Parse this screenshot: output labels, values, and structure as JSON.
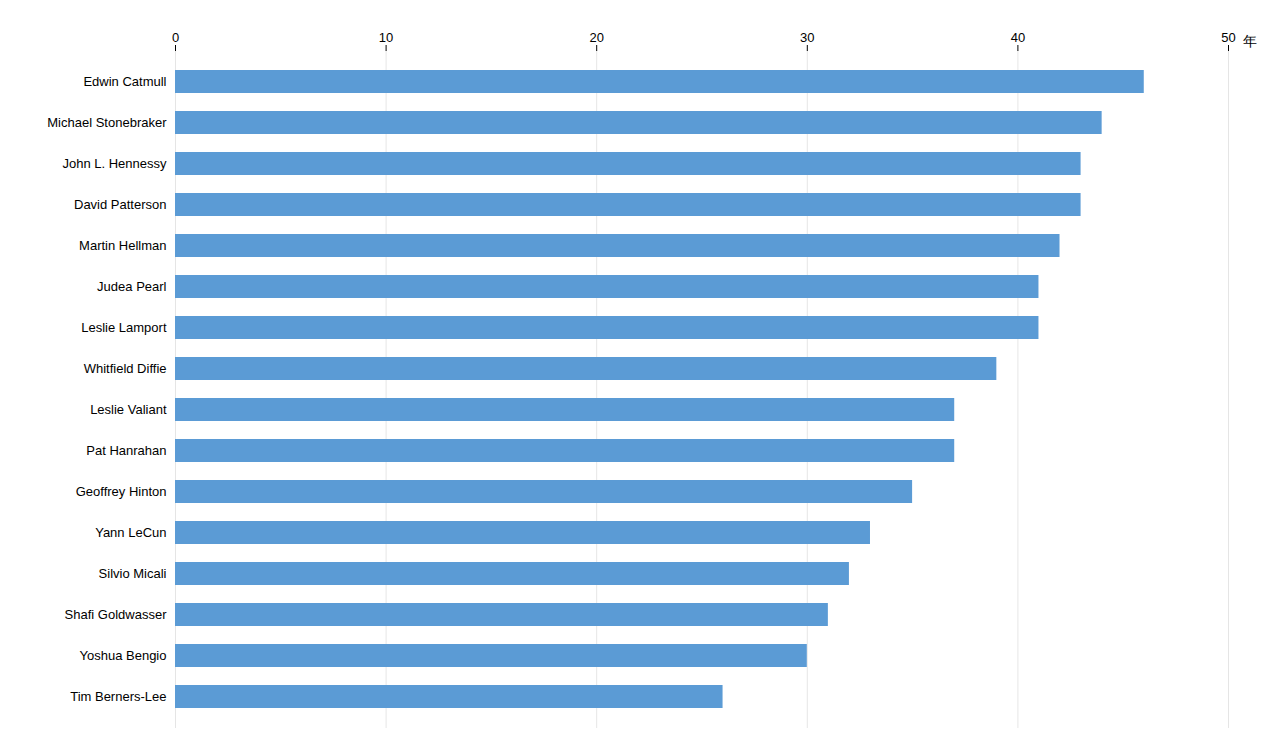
{
  "chart_data": {
    "type": "bar",
    "orientation": "horizontal",
    "xlabel": "年",
    "categories": [
      "Edwin Catmull",
      "Michael Stonebraker",
      "John L. Hennessy",
      "David Patterson",
      "Martin Hellman",
      "Judea Pearl",
      "Leslie Lamport",
      "Whitfield Diffie",
      "Leslie Valiant",
      "Pat Hanrahan",
      "Geoffrey Hinton",
      "Yann LeCun",
      "Silvio Micali",
      "Shafi Goldwasser",
      "Yoshua Bengio",
      "Tim Berners-Lee"
    ],
    "values": [
      46,
      44,
      43,
      43,
      42,
      41,
      41,
      39,
      37,
      37,
      35,
      33,
      32,
      31,
      30,
      26
    ],
    "color": "#5B9BD5",
    "xlim": [
      0,
      50
    ],
    "xticks": [
      0,
      10,
      20,
      30,
      40,
      50
    ],
    "grid": true
  }
}
